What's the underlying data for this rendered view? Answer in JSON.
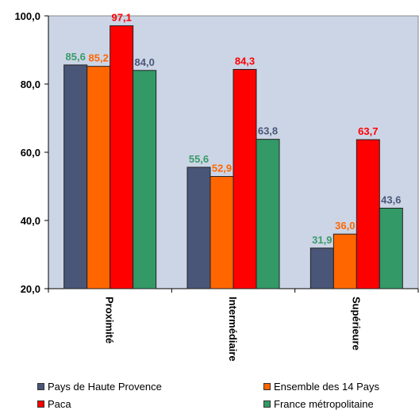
{
  "chart_data": {
    "type": "bar",
    "categories": [
      "Proximité",
      "Intermédiaire",
      "Supérieure"
    ],
    "series": [
      {
        "name": "Pays de Haute Provence",
        "color": "#4a5678",
        "label_color": "#4a5678",
        "values": [
          85.6,
          55.6,
          31.9
        ],
        "value_labels": [
          "85,6",
          "55,6",
          "31,9"
        ]
      },
      {
        "name": "Ensemble des 14 Pays",
        "color": "#ff6600",
        "label_color": "#ff6600",
        "values": [
          85.2,
          52.9,
          36.0
        ],
        "value_labels": [
          "85,2",
          "52,9",
          "36,0"
        ]
      },
      {
        "name": "Paca",
        "color": "#ff0000",
        "label_color": "#ff0000",
        "values": [
          97.1,
          84.3,
          63.7
        ],
        "value_labels": [
          "97,1",
          "84,3",
          "63,7"
        ]
      },
      {
        "name": "France métropolitaine",
        "color": "#339966",
        "label_color": "#4a5678",
        "values": [
          84.0,
          63.8,
          43.6
        ],
        "value_labels": [
          "84,0",
          "63,8",
          "43,6"
        ]
      }
    ],
    "value_label_colors": [
      [
        "#3a9a6a",
        "#ff6600",
        "#ff0000",
        "#4a5678"
      ],
      [
        "#3a9a6a",
        "#ff6600",
        "#ff0000",
        "#4a5678"
      ],
      [
        "#3a9a6a",
        "#ff6600",
        "#ff0000",
        "#4a5678"
      ]
    ],
    "ylim": [
      20,
      100
    ],
    "yticks": [
      20,
      40,
      60,
      80,
      100
    ],
    "ytick_labels": [
      "20,0",
      "40,0",
      "60,0",
      "80,0",
      "100,0"
    ],
    "plot_background": "#ccd5e6",
    "grid": false,
    "legend_position": "bottom",
    "xlabel": "",
    "ylabel": "",
    "title": ""
  }
}
